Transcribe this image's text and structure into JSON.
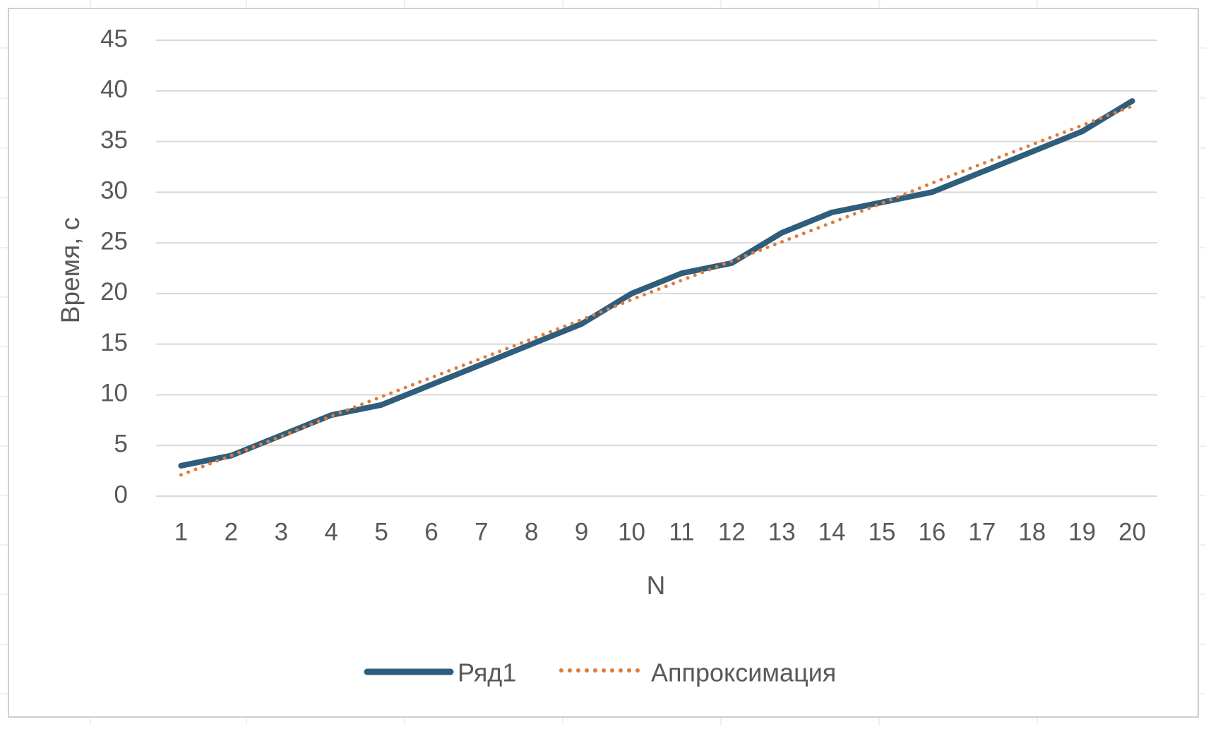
{
  "chart_data": {
    "type": "line",
    "title": "",
    "xlabel": "N",
    "ylabel": "Время, с",
    "categories": [
      "1",
      "2",
      "3",
      "4",
      "5",
      "6",
      "7",
      "8",
      "9",
      "10",
      "11",
      "12",
      "13",
      "14",
      "15",
      "16",
      "17",
      "18",
      "19",
      "20"
    ],
    "ylim": [
      0,
      45
    ],
    "yticks": [
      0,
      5,
      10,
      15,
      20,
      25,
      30,
      35,
      40,
      45
    ],
    "grid": true,
    "legend_position": "bottom",
    "series": [
      {
        "name": "Ряд1",
        "style": "solid",
        "color": "#2F5D7C",
        "values": [
          3,
          4,
          6,
          8,
          9,
          11,
          13,
          15,
          17,
          20,
          22,
          23,
          26,
          28,
          29,
          30,
          32,
          34,
          36,
          39
        ]
      },
      {
        "name": "Аппроксимация",
        "style": "dotted",
        "color": "#E07B39",
        "values": [
          2.1,
          4.0,
          5.9,
          7.9,
          9.8,
          11.7,
          13.6,
          15.5,
          17.4,
          19.4,
          21.3,
          23.2,
          25.1,
          27.0,
          28.9,
          30.9,
          32.8,
          34.7,
          36.6,
          38.5
        ]
      }
    ]
  },
  "colors": {
    "grid": "#D9D9D9",
    "sheet_grid": "#E1E1E1",
    "chart_border": "#BFBFBF",
    "text": "#595959"
  }
}
